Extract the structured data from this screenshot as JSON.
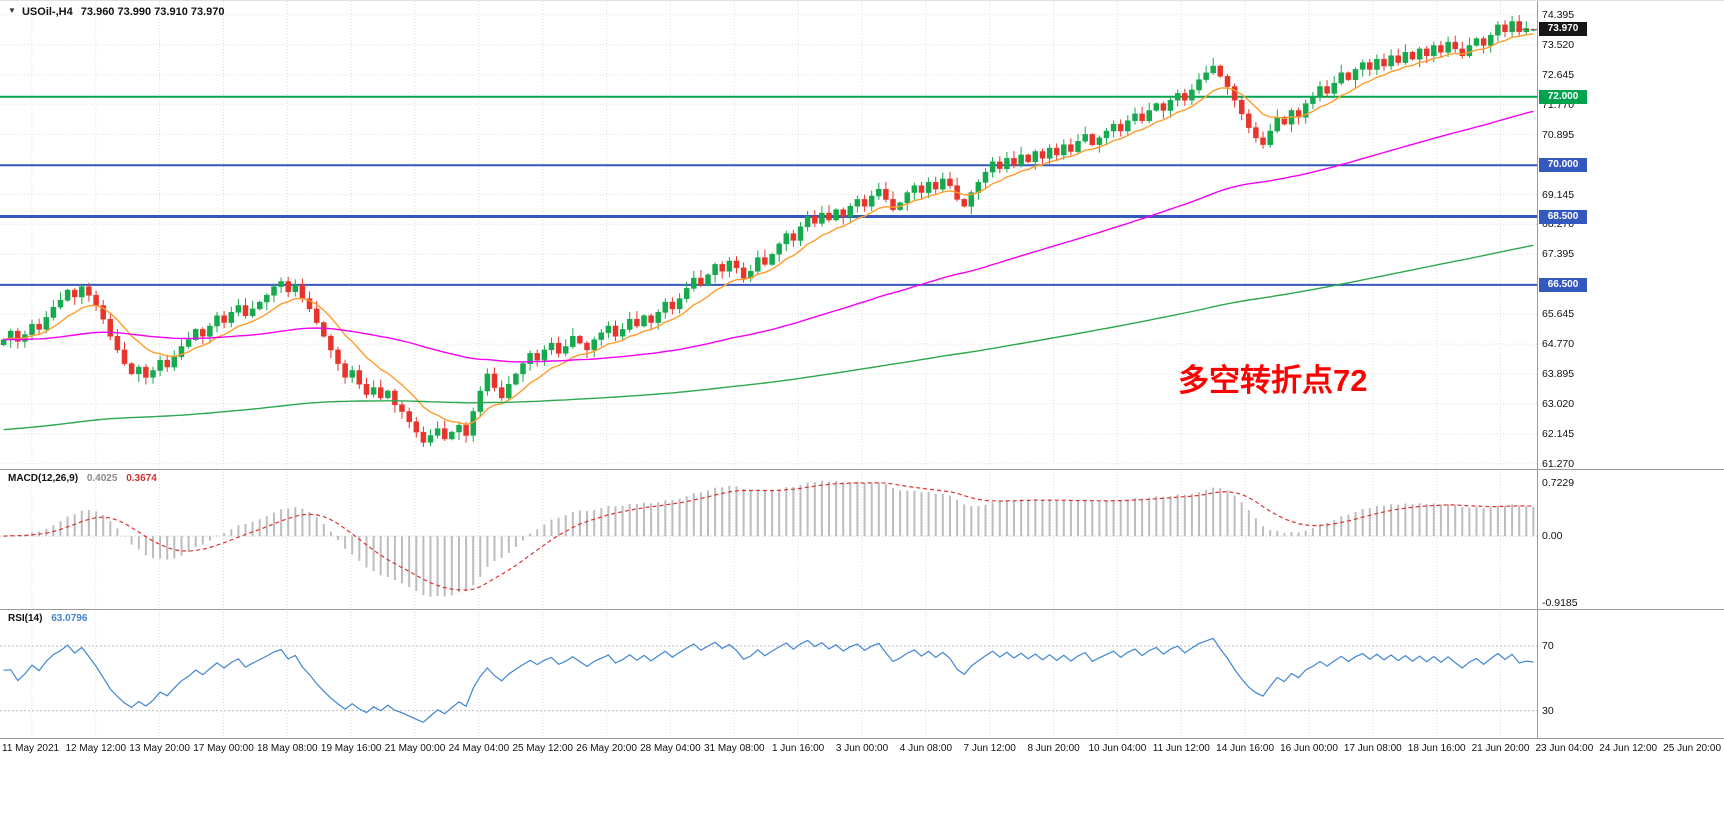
{
  "header": {
    "symbol_title": "USOil-,H4",
    "ohlc_text": "73.960 73.990 73.910 73.970",
    "marker_icon": "▼"
  },
  "annotation": {
    "text": "多空转折点72",
    "color": "#FF0000"
  },
  "colors": {
    "up": "#16A94E",
    "down": "#E8352C",
    "grid": "#DEDEDE",
    "histogram": "#BDBDBD",
    "signal": "#E03030",
    "rsi_line": "#3F86D2",
    "badge_current_bg": "#161616",
    "separator": "#9A9A9A"
  },
  "chart_data": {
    "type": "candlestick",
    "title": "USOil-,H4 73.960 73.990 73.910 73.970",
    "symbol": "USOil-",
    "timeframe": "H4",
    "ylim": [
      61.12,
      74.8
    ],
    "price_grid": [
      74.395,
      73.52,
      72.645,
      71.77,
      70.895,
      70.02,
      69.145,
      68.27,
      67.395,
      66.52,
      65.645,
      64.77,
      63.895,
      63.02,
      62.145,
      61.27
    ],
    "current_price": 73.97,
    "ohlc_last": {
      "open": 73.96,
      "high": 73.99,
      "low": 73.91,
      "close": 73.97
    },
    "hlines": [
      {
        "value": 72.0,
        "color": "#00A24D",
        "width": 2
      },
      {
        "value": 70.0,
        "color": "#3558BE",
        "width": 2
      },
      {
        "value": 68.5,
        "color": "#3558BE",
        "width": 3
      },
      {
        "value": 66.5,
        "color": "#3558BE",
        "width": 2
      }
    ],
    "moving_averages": [
      {
        "name": "fast-ma",
        "period": 10,
        "seed": 64.9,
        "color": "#FF9C2B"
      },
      {
        "name": "medium-ma",
        "period": 90,
        "seed": 64.9,
        "color": "#F400F4"
      },
      {
        "name": "slow-ma",
        "period": 300,
        "seed": 62.25,
        "color": "#2DA84F"
      }
    ],
    "x_labels": [
      "11 May 2021",
      "12 May 12:00",
      "13 May 20:00",
      "17 May 00:00",
      "18 May 08:00",
      "19 May 16:00",
      "21 May 00:00",
      "24 May 04:00",
      "25 May 12:00",
      "26 May 20:00",
      "28 May 04:00",
      "31 May 08:00",
      "1 Jun 16:00",
      "3 Jun 00:00",
      "4 Jun 08:00",
      "7 Jun 12:00",
      "8 Jun 20:00",
      "10 Jun 04:00",
      "11 Jun 12:00",
      "14 Jun 16:00",
      "16 Jun 00:00",
      "17 Jun 08:00",
      "18 Jun 16:00",
      "21 Jun 20:00",
      "23 Jun 04:00",
      "24 Jun 12:00",
      "25 Jun 20:00"
    ],
    "closes": [
      64.9,
      65.15,
      64.85,
      65.05,
      65.35,
      65.2,
      65.55,
      65.85,
      66.05,
      66.35,
      66.15,
      66.45,
      66.2,
      65.9,
      65.5,
      65.0,
      64.6,
      64.2,
      63.9,
      64.1,
      63.8,
      64.0,
      64.3,
      64.1,
      64.4,
      64.7,
      64.9,
      65.2,
      65.0,
      65.3,
      65.6,
      65.4,
      65.7,
      65.9,
      65.6,
      65.8,
      66.0,
      66.2,
      66.45,
      66.6,
      66.3,
      66.5,
      66.1,
      65.8,
      65.4,
      65.0,
      64.6,
      64.2,
      63.8,
      64.0,
      63.6,
      63.3,
      63.5,
      63.2,
      63.4,
      63.0,
      62.8,
      62.5,
      62.2,
      61.9,
      62.1,
      62.3,
      62.0,
      62.2,
      62.4,
      62.1,
      62.8,
      63.4,
      63.9,
      63.5,
      63.2,
      63.6,
      63.9,
      64.2,
      64.5,
      64.3,
      64.6,
      64.8,
      64.5,
      64.7,
      65.0,
      64.8,
      64.6,
      64.9,
      65.1,
      65.3,
      65.0,
      65.2,
      65.5,
      65.3,
      65.6,
      65.4,
      65.7,
      66.0,
      65.8,
      66.1,
      66.4,
      66.7,
      66.5,
      66.8,
      67.1,
      66.9,
      67.2,
      67.0,
      66.7,
      66.9,
      67.3,
      67.1,
      67.4,
      67.7,
      68.0,
      67.8,
      68.2,
      68.5,
      68.3,
      68.6,
      68.4,
      68.7,
      68.5,
      68.8,
      69.0,
      68.8,
      69.1,
      69.3,
      69.0,
      68.7,
      68.9,
      69.2,
      69.4,
      69.2,
      69.5,
      69.3,
      69.6,
      69.4,
      69.0,
      68.8,
      69.2,
      69.5,
      69.8,
      70.1,
      69.9,
      70.2,
      70.0,
      70.3,
      70.1,
      70.4,
      70.2,
      70.5,
      70.3,
      70.6,
      70.4,
      70.7,
      70.9,
      70.6,
      70.8,
      71.0,
      71.2,
      71.0,
      71.3,
      71.5,
      71.3,
      71.6,
      71.8,
      71.6,
      71.9,
      72.1,
      71.9,
      72.2,
      72.5,
      72.7,
      72.9,
      72.6,
      72.3,
      71.9,
      71.5,
      71.1,
      70.8,
      70.6,
      71.0,
      71.4,
      71.2,
      71.6,
      71.4,
      71.8,
      72.0,
      72.3,
      72.1,
      72.4,
      72.7,
      72.5,
      72.8,
      73.0,
      72.8,
      73.1,
      72.9,
      73.2,
      73.0,
      73.3,
      73.1,
      73.4,
      73.2,
      73.5,
      73.3,
      73.6,
      73.4,
      73.2,
      73.5,
      73.7,
      73.5,
      73.8,
      74.1,
      73.9,
      74.2,
      73.9,
      74.0,
      73.97
    ],
    "macd": {
      "label": "MACD(12,26,9)",
      "fast": 12,
      "slow": 26,
      "signal": 9,
      "value_main": "0.4025",
      "value_signal": "0.3674",
      "ylim": [
        -1.0,
        0.92
      ],
      "axis_ticks": [
        0.7229,
        0,
        -0.9185
      ],
      "axis_labels": [
        "0.7229",
        "0.00",
        "-0.9185"
      ]
    },
    "rsi": {
      "label": "RSI(14)",
      "period": 14,
      "value": "63.0796",
      "levels": [
        70,
        30
      ],
      "ylim": [
        13,
        93
      ]
    }
  }
}
